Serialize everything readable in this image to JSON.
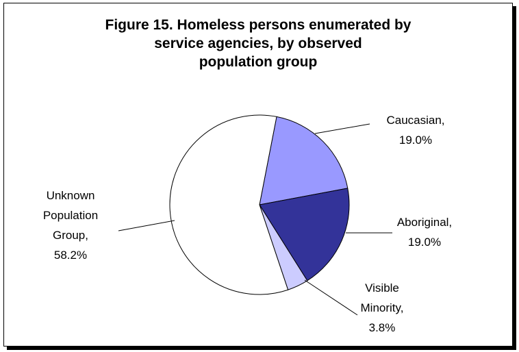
{
  "chart_data": {
    "type": "pie",
    "title": "Figure 15. Homeless persons enumerated by\nservice agencies, by observed\npopulation group",
    "slices": [
      {
        "label": "Caucasian",
        "value": 19.0,
        "value_label": "19.0%",
        "color": "#9999ff"
      },
      {
        "label": "Aboriginal",
        "value": 19.0,
        "value_label": "19.0%",
        "color": "#333399"
      },
      {
        "label": "Visible Minority",
        "value": 3.8,
        "value_label": "3.8%",
        "color": "#ccccff"
      },
      {
        "label": "Unknown Population Group",
        "value": 58.2,
        "value_label": "58.2%",
        "color": "#ffffff"
      }
    ]
  }
}
